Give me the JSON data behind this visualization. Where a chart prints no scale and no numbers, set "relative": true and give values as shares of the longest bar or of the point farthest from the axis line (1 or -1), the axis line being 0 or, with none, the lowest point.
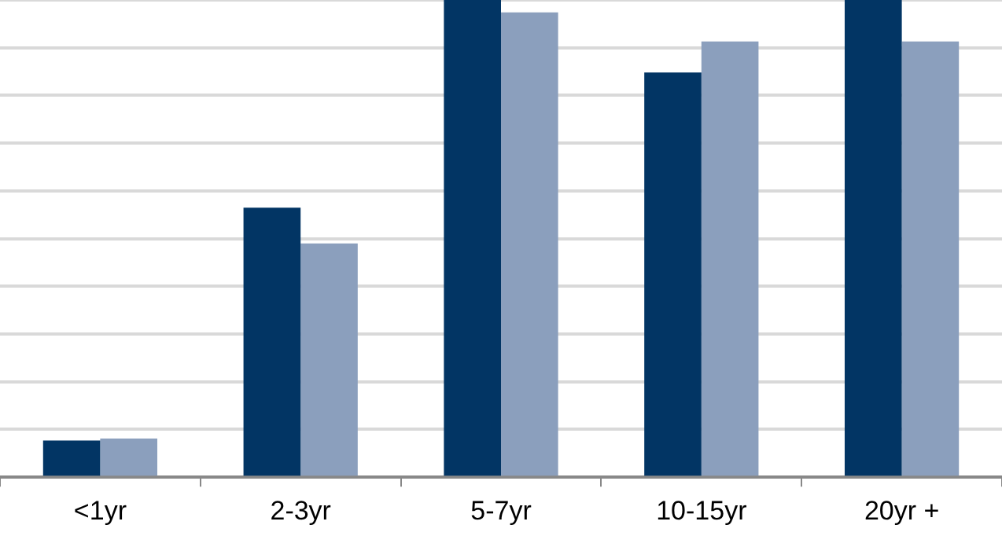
{
  "chart_data": {
    "type": "bar",
    "relative": true,
    "grid": "y",
    "categories": [
      "<1yr",
      "2-3yr",
      "5-7yr",
      "10-15yr",
      "20yr +"
    ],
    "series": [
      {
        "color": "#023564",
        "values": [
          0.077,
          0.565,
          1,
          0.848,
          1
        ]
      },
      {
        "color": "#8b9fbd",
        "values": [
          0.081,
          0.49,
          0.974,
          0.913,
          0.913
        ]
      }
    ]
  }
}
